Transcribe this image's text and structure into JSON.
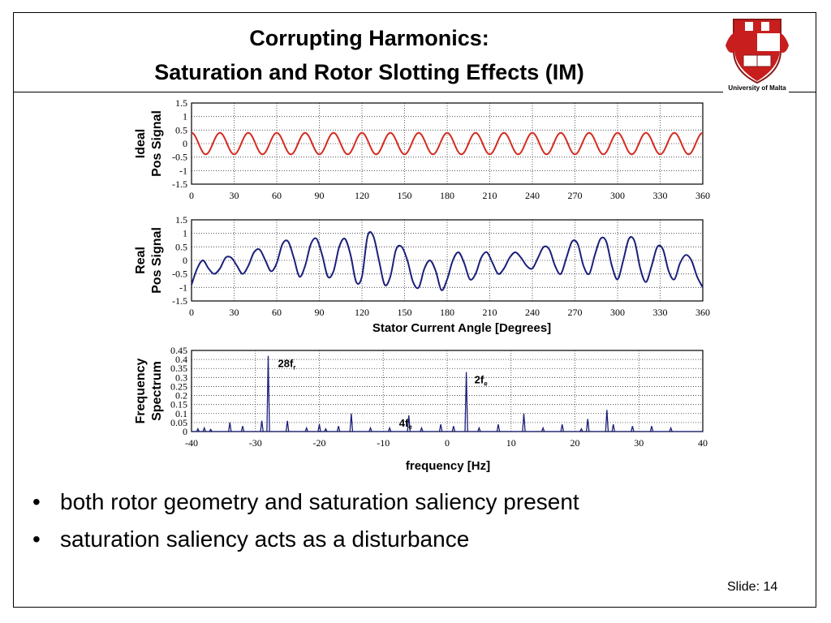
{
  "slide": {
    "title_line1": "Corrupting Harmonics:",
    "title_line2": "Saturation and Rotor Slotting Effects (IM)",
    "logo_caption": "University of Malta",
    "bullets": [
      "both rotor geometry and saturation saliency present",
      "saturation saliency acts as a disturbance"
    ],
    "slide_number": "Slide: 14"
  },
  "colors": {
    "ideal": "#d42a1e",
    "real": "#1b1f7a",
    "spectrum": "#1b1f7a",
    "grid": "#333333"
  },
  "chart_data": [
    {
      "type": "line",
      "ylabel": [
        "Ideal",
        "Pos Signal"
      ],
      "xlabel": "",
      "xlim": [
        0,
        360
      ],
      "ylim": [
        -1.5,
        1.5
      ],
      "xticks": [
        "0",
        "30",
        "60",
        "90",
        "120",
        "150",
        "180",
        "210",
        "240",
        "270",
        "300",
        "330",
        "360"
      ],
      "yticks": [
        "1.5",
        "1",
        "0.5",
        "0",
        "-0.5",
        "-1",
        "-1.5"
      ],
      "grid": true,
      "series": [
        {
          "amplitude": 0.4,
          "cycles": 18,
          "phase_deg": 0
        }
      ]
    },
    {
      "type": "line",
      "ylabel": [
        "Real",
        "Pos Signal"
      ],
      "xlabel": "Stator Current Angle  [Degrees]",
      "xlim": [
        0,
        360
      ],
      "ylim": [
        -1.5,
        1.5
      ],
      "xticks": [
        "0",
        "30",
        "60",
        "90",
        "120",
        "150",
        "180",
        "210",
        "240",
        "270",
        "300",
        "330",
        "360"
      ],
      "yticks": [
        "1.5",
        "1",
        "0.5",
        "0",
        "-0.5",
        "-1",
        "-1.5"
      ],
      "grid": true,
      "series": [
        {
          "x": [
            0,
            4,
            8,
            12,
            16,
            20,
            24,
            28,
            32,
            36,
            40,
            44,
            48,
            52,
            56,
            60,
            64,
            68,
            72,
            76,
            80,
            84,
            88,
            92,
            96,
            100,
            104,
            108,
            112,
            116,
            120,
            124,
            128,
            132,
            136,
            140,
            144,
            148,
            152,
            156,
            160,
            164,
            168,
            172,
            176,
            180,
            184,
            188,
            192,
            196,
            200,
            204,
            208,
            212,
            216,
            220,
            224,
            228,
            232,
            236,
            240,
            244,
            248,
            252,
            256,
            260,
            264,
            268,
            272,
            276,
            280,
            284,
            288,
            292,
            296,
            300,
            304,
            308,
            312,
            316,
            320,
            324,
            328,
            332,
            336,
            340,
            344,
            348,
            352,
            356,
            360
          ],
          "y": [
            -0.9,
            -0.3,
            0.0,
            -0.3,
            -0.5,
            -0.3,
            0.1,
            0.1,
            -0.2,
            -0.5,
            -0.2,
            0.3,
            0.4,
            0.0,
            -0.4,
            -0.1,
            0.6,
            0.7,
            0.1,
            -0.6,
            -0.2,
            0.6,
            0.8,
            0.2,
            -0.6,
            -0.4,
            0.5,
            0.8,
            0.2,
            -0.8,
            -0.6,
            0.9,
            0.9,
            0.0,
            -0.9,
            -0.6,
            0.4,
            0.5,
            0.0,
            -0.8,
            -1.0,
            -0.3,
            0.0,
            -0.4,
            -1.1,
            -0.7,
            0.0,
            0.3,
            -0.1,
            -0.7,
            -0.5,
            0.1,
            0.3,
            -0.1,
            -0.5,
            -0.3,
            0.1,
            0.3,
            0.1,
            -0.2,
            -0.3,
            0.1,
            0.5,
            0.4,
            -0.2,
            -0.5,
            0.1,
            0.7,
            0.6,
            -0.2,
            -0.5,
            0.2,
            0.8,
            0.7,
            -0.2,
            -0.7,
            0.0,
            0.8,
            0.7,
            -0.3,
            -0.8,
            -0.2,
            0.5,
            0.4,
            -0.4,
            -0.7,
            -0.1,
            0.2,
            0.0,
            -0.6,
            -1.0
          ]
        }
      ]
    },
    {
      "type": "bar",
      "ylabel": [
        "Frequency",
        "Spectrum"
      ],
      "xlabel": "frequency [Hz]",
      "xlim": [
        -40,
        40
      ],
      "ylim": [
        0,
        0.45
      ],
      "xticks": [
        "-40",
        "-30",
        "-20",
        "-10",
        "0",
        "10",
        "20",
        "30",
        "40"
      ],
      "yticks": [
        "0.45",
        "0.4",
        "0.35",
        "0.3",
        "0.25",
        "0.2",
        "0.15",
        "0.1",
        "0.05",
        "0"
      ],
      "grid": true,
      "series": [
        {
          "x": [
            -39,
            -38,
            -37,
            -34,
            -32,
            -29,
            -28,
            -25,
            -22,
            -20,
            -19,
            -17,
            -15,
            -12,
            -9,
            -6,
            -4,
            -1,
            1,
            3,
            5,
            8,
            12,
            15,
            18,
            21,
            22,
            25,
            26,
            29,
            32,
            35
          ],
          "y": [
            0.015,
            0.02,
            0.012,
            0.05,
            0.03,
            0.06,
            0.42,
            0.06,
            0.02,
            0.04,
            0.015,
            0.03,
            0.1,
            0.02,
            0.02,
            0.09,
            0.02,
            0.04,
            0.03,
            0.33,
            0.02,
            0.04,
            0.1,
            0.02,
            0.04,
            0.015,
            0.07,
            0.12,
            0.04,
            0.03,
            0.03,
            0.02
          ]
        }
      ],
      "annotations": [
        {
          "text": "28f",
          "sub": "r",
          "x": -28
        },
        {
          "text": "2f",
          "sub": "e",
          "x": 3
        },
        {
          "text": "4f",
          "sub": "e",
          "x": -6
        }
      ]
    }
  ]
}
